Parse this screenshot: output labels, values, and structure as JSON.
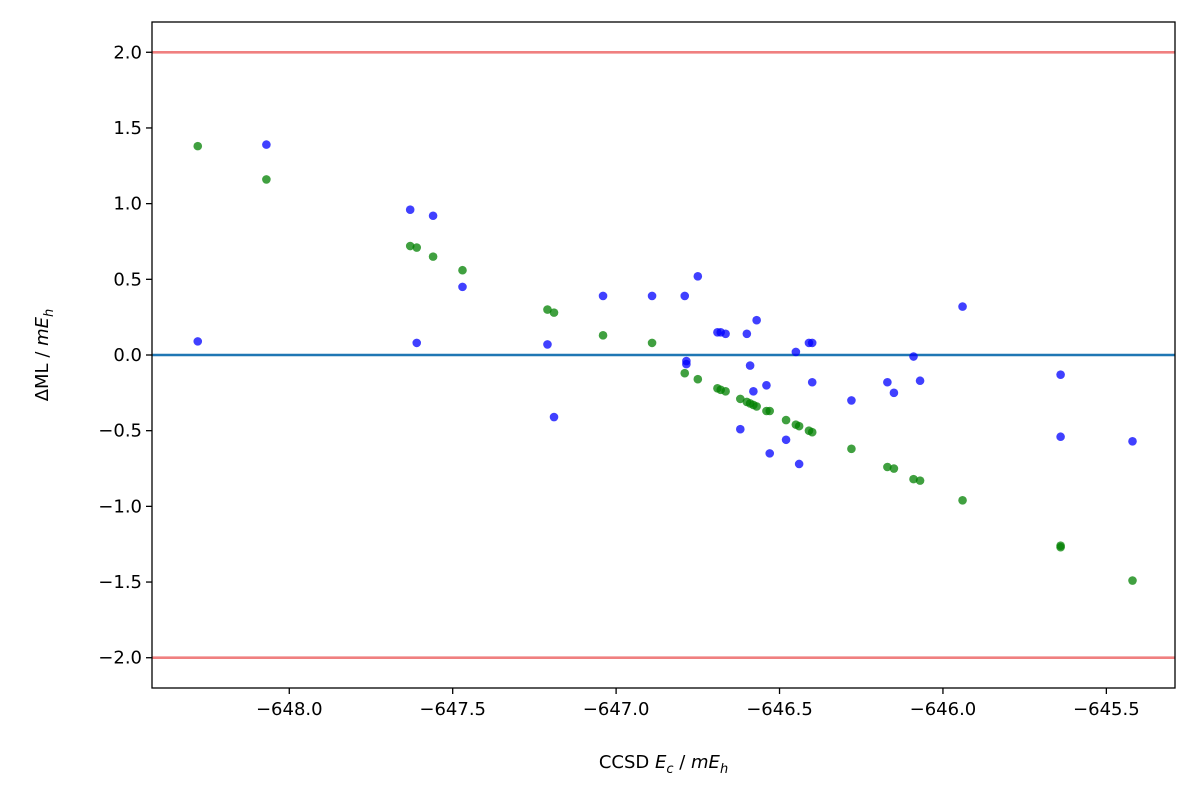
{
  "chart_data": {
    "type": "scatter",
    "title": "",
    "xlabel": {
      "main": "CCSD ",
      "var": "E",
      "sub": "c",
      "rest": " / ",
      "unit_var": "mE",
      "unit_sub": "h"
    },
    "ylabel": {
      "main": "ΔML",
      "rest": " / ",
      "unit_var": "mE",
      "unit_sub": "h"
    },
    "xlim": [
      -648.42,
      -645.29
    ],
    "ylim": [
      -2.2,
      2.2
    ],
    "xticks": [
      -648.0,
      -647.5,
      -647.0,
      -646.5,
      -646.0,
      -645.5
    ],
    "xtick_labels": [
      "−648.0",
      "−647.5",
      "−647.0",
      "−646.5",
      "−646.0",
      "−645.5"
    ],
    "yticks": [
      2.0,
      1.5,
      1.0,
      0.5,
      0.0,
      -0.5,
      -1.0,
      -1.5,
      -2.0
    ],
    "ytick_labels": [
      "2.0",
      "1.5",
      "1.0",
      "0.5",
      "0.0",
      "−0.5",
      "−1.0",
      "−1.5",
      "−2.0"
    ],
    "grid": false,
    "reference_lines": [
      {
        "y": 2.0,
        "color": "#f08080"
      },
      {
        "y": 0.0,
        "color": "#1f77b4"
      },
      {
        "y": -2.0,
        "color": "#f08080"
      }
    ],
    "series": [
      {
        "color": "#0000ff",
        "points": [
          [
            -648.28,
            0.09
          ],
          [
            -648.07,
            1.39
          ],
          [
            -647.63,
            0.96
          ],
          [
            -647.61,
            0.08
          ],
          [
            -647.56,
            0.92
          ],
          [
            -647.47,
            0.45
          ],
          [
            -647.21,
            0.07
          ],
          [
            -647.19,
            -0.41
          ],
          [
            -647.04,
            0.39
          ],
          [
            -646.89,
            0.39
          ],
          [
            -646.79,
            0.39
          ],
          [
            -646.785,
            -0.04
          ],
          [
            -646.785,
            -0.06
          ],
          [
            -646.75,
            0.52
          ],
          [
            -646.69,
            0.15
          ],
          [
            -646.68,
            0.15
          ],
          [
            -646.665,
            0.14
          ],
          [
            -646.62,
            -0.49
          ],
          [
            -646.6,
            0.14
          ],
          [
            -646.59,
            -0.07
          ],
          [
            -646.58,
            -0.24
          ],
          [
            -646.57,
            0.23
          ],
          [
            -646.54,
            -0.2
          ],
          [
            -646.53,
            -0.65
          ],
          [
            -646.48,
            -0.56
          ],
          [
            -646.45,
            0.02
          ],
          [
            -646.44,
            -0.72
          ],
          [
            -646.41,
            0.08
          ],
          [
            -646.4,
            0.08
          ],
          [
            -646.4,
            -0.18
          ],
          [
            -646.28,
            -0.3
          ],
          [
            -646.17,
            -0.18
          ],
          [
            -646.15,
            -0.25
          ],
          [
            -646.09,
            -0.01
          ],
          [
            -646.07,
            -0.17
          ],
          [
            -645.94,
            0.32
          ],
          [
            -645.64,
            -0.13
          ],
          [
            -645.64,
            -0.54
          ],
          [
            -645.42,
            -0.57
          ]
        ]
      },
      {
        "color": "#008000",
        "points": [
          [
            -648.28,
            1.38
          ],
          [
            -648.07,
            1.16
          ],
          [
            -647.63,
            0.72
          ],
          [
            -647.61,
            0.71
          ],
          [
            -647.56,
            0.65
          ],
          [
            -647.47,
            0.56
          ],
          [
            -647.21,
            0.3
          ],
          [
            -647.19,
            0.28
          ],
          [
            -647.04,
            0.13
          ],
          [
            -646.89,
            0.08
          ],
          [
            -646.79,
            -0.12
          ],
          [
            -646.75,
            -0.16
          ],
          [
            -646.69,
            -0.22
          ],
          [
            -646.68,
            -0.23
          ],
          [
            -646.665,
            -0.24
          ],
          [
            -646.62,
            -0.29
          ],
          [
            -646.6,
            -0.31
          ],
          [
            -646.59,
            -0.32
          ],
          [
            -646.58,
            -0.33
          ],
          [
            -646.57,
            -0.34
          ],
          [
            -646.54,
            -0.37
          ],
          [
            -646.53,
            -0.37
          ],
          [
            -646.48,
            -0.43
          ],
          [
            -646.45,
            -0.46
          ],
          [
            -646.44,
            -0.47
          ],
          [
            -646.41,
            -0.5
          ],
          [
            -646.4,
            -0.51
          ],
          [
            -646.28,
            -0.62
          ],
          [
            -646.17,
            -0.74
          ],
          [
            -646.15,
            -0.75
          ],
          [
            -646.09,
            -0.82
          ],
          [
            -646.07,
            -0.83
          ],
          [
            -645.94,
            -0.96
          ],
          [
            -645.64,
            -1.26
          ],
          [
            -645.64,
            -1.27
          ],
          [
            -645.42,
            -1.49
          ]
        ]
      }
    ]
  }
}
